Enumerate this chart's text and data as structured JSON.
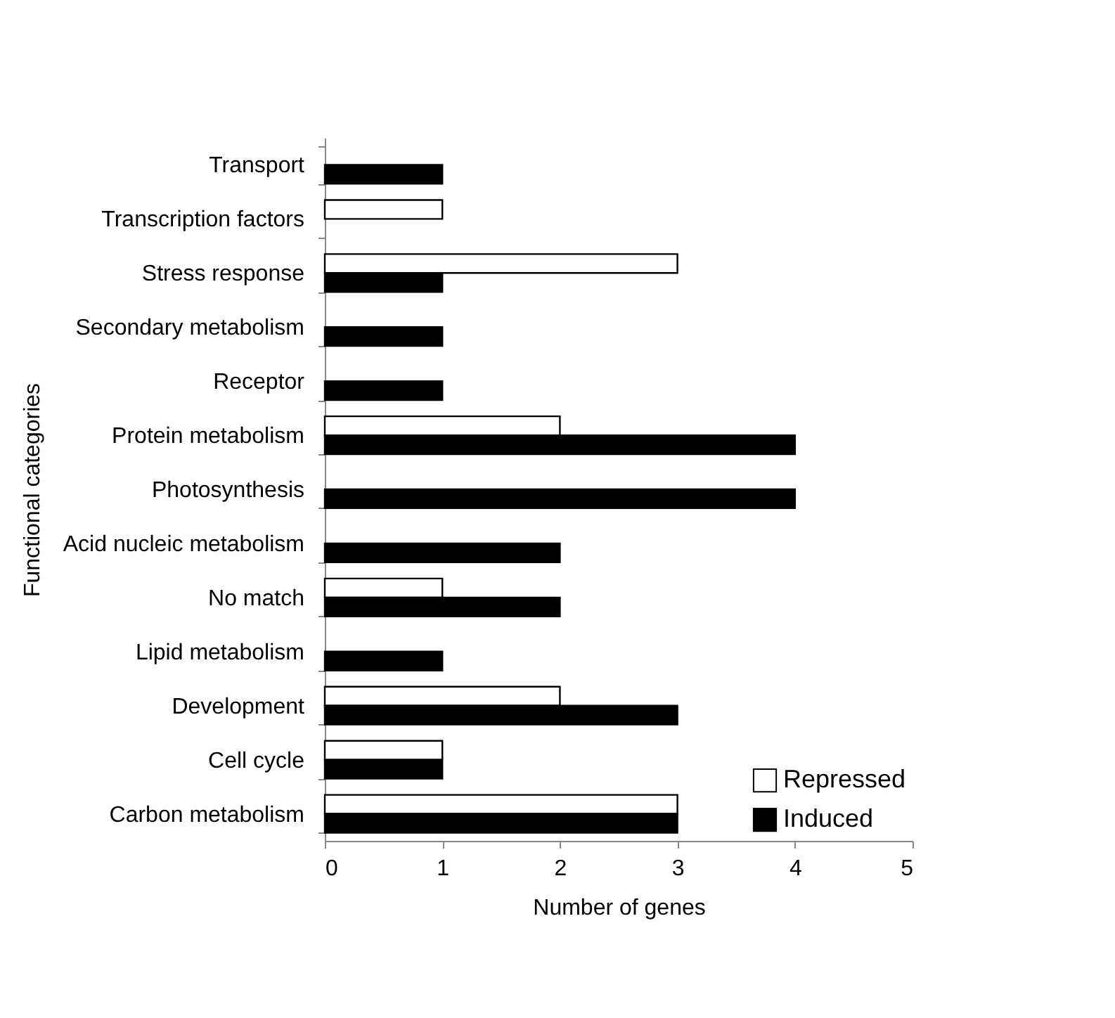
{
  "chart_data": {
    "type": "bar",
    "orientation": "horizontal",
    "xlabel": "Number of genes",
    "ylabel": "Functional categories",
    "categories": [
      "Transport",
      "Transcription factors",
      "Stress response",
      "Secondary metabolism",
      "Receptor",
      "Protein metabolism",
      "Photosynthesis",
      "Acid nucleic metabolism",
      "No match",
      "Lipid metabolism",
      "Development",
      "Cell cycle",
      "Carbon metabolism"
    ],
    "series": [
      {
        "name": "Repressed",
        "color": "#ffffff",
        "values": [
          null,
          1,
          3,
          null,
          null,
          2,
          null,
          null,
          1,
          null,
          2,
          1,
          3
        ]
      },
      {
        "name": "Induced",
        "color": "#000000",
        "values": [
          1,
          null,
          1,
          1,
          1,
          4,
          4,
          2,
          2,
          1,
          3,
          1,
          3
        ]
      }
    ],
    "xlim": [
      0,
      5
    ],
    "xticks": [
      0,
      1,
      2,
      3,
      4,
      5
    ],
    "grid": false,
    "legend": "bottom right"
  }
}
